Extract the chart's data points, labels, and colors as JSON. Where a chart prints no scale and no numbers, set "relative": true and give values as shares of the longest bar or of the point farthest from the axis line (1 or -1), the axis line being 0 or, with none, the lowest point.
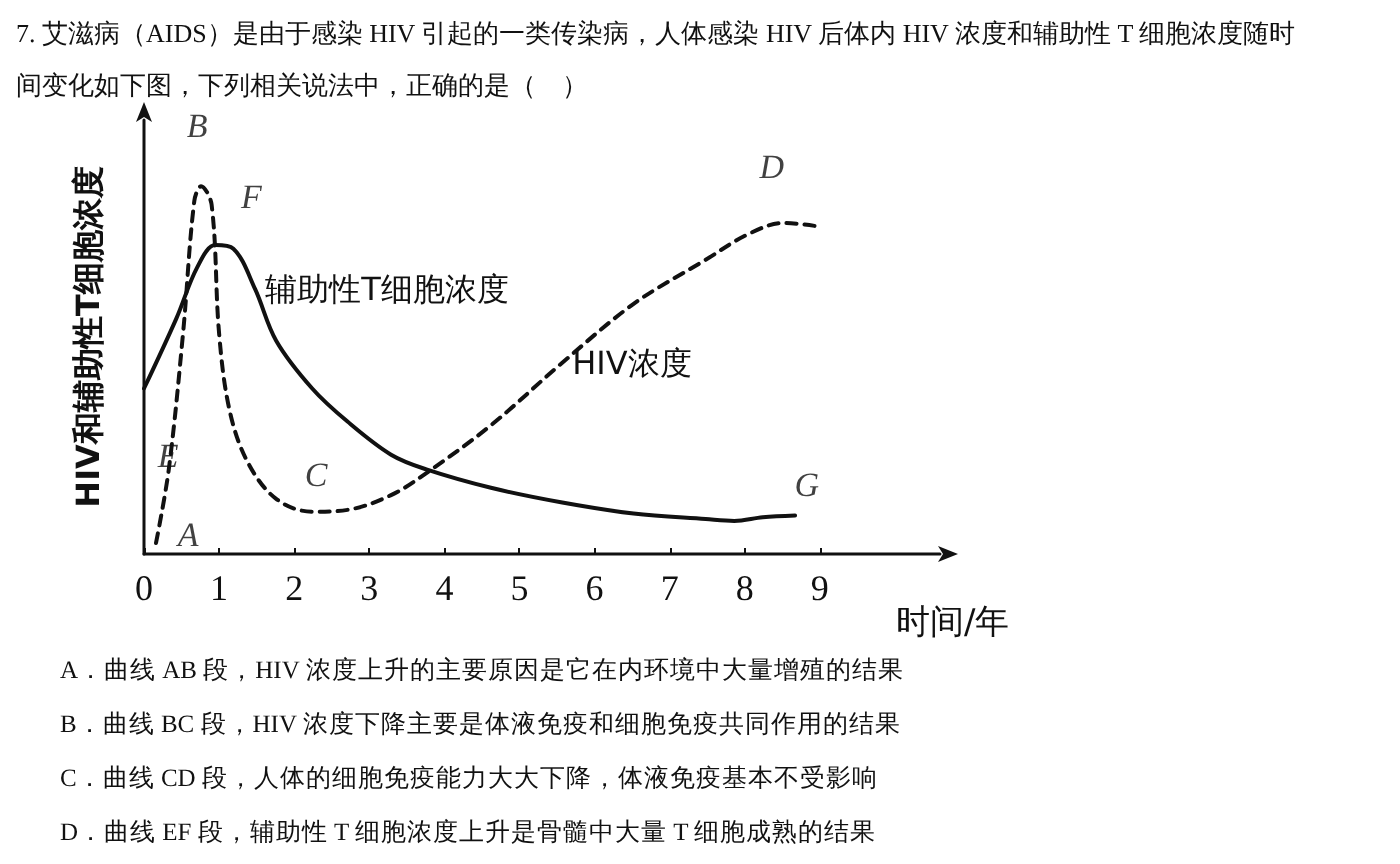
{
  "chart_data": {
    "type": "line",
    "relative": true,
    "title": "7. 艾滋病（AIDS）是由于感染 HIV 引起的一类传染病，人体感染 HIV 后体内 HIV 浓度和辅助性 T 细胞浓度随时间变化如下图，下列相关说法中，正确的是（　）",
    "xlabel": "时间/年",
    "ylabel": "HIV和辅助性T细胞浓度",
    "xlim": [
      0,
      10.6
    ],
    "xticks": [
      0,
      1,
      2,
      3,
      4,
      5,
      6,
      7,
      8,
      9
    ],
    "marker": "none",
    "series": [
      {
        "name": "辅助性T细胞浓度",
        "color": "#111111",
        "line_style": "solid",
        "x": [
          0,
          0.43,
          0.71,
          0.95,
          1.19,
          1.48,
          1.76,
          2.24,
          2.71,
          3.29,
          3.76,
          4.62,
          5.57,
          6.52,
          7.48,
          7.86,
          8.24,
          8.67
        ],
        "values": [
          0.45,
          0.64,
          0.78,
          0.84,
          0.83,
          0.72,
          0.58,
          0.45,
          0.36,
          0.27,
          0.23,
          0.18,
          0.14,
          0.11,
          0.095,
          0.09,
          0.1,
          0.105
        ]
      },
      {
        "name": "HIV浓度",
        "color": "#111111",
        "line_style": "dashed",
        "x": [
          0.16,
          0.33,
          0.52,
          0.67,
          0.76,
          0.9,
          1.0,
          1.14,
          1.38,
          1.76,
          2.24,
          2.71,
          3.29,
          3.76,
          4.62,
          5.57,
          6.52,
          7.48,
          8.05,
          8.52,
          9.0
        ],
        "values": [
          0.03,
          0.23,
          0.6,
          0.96,
          1.0,
          0.95,
          0.6,
          0.39,
          0.25,
          0.15,
          0.115,
          0.12,
          0.16,
          0.22,
          0.35,
          0.52,
          0.68,
          0.8,
          0.87,
          0.9,
          0.89
        ]
      }
    ],
    "annotations": [
      {
        "text": "A",
        "x": 0.16,
        "y": 0.03
      },
      {
        "text": "B",
        "x": 0.76,
        "y": 1.0
      },
      {
        "text": "C",
        "x": 1.76,
        "y": 0.15
      },
      {
        "text": "D",
        "x": 8.52,
        "y": 0.9
      },
      {
        "text": "E",
        "x": 0,
        "y": 0.45
      },
      {
        "text": "F",
        "x": 0.95,
        "y": 0.84
      },
      {
        "text": "G",
        "x": 8.24,
        "y": 0.1
      },
      "A．曲线 AB 段，HIV 浓度上升的主要原因是它在内环境中大量增殖的结果",
      "B．曲线 BC 段，HIV 浓度下降主要是体液免疫和细胞免疫共同作用的结果",
      "C．曲线 CD 段，人体的细胞免疫能力大大下降，体液免疫基本不受影响",
      "D．曲线 EF 段，辅助性 T 细胞浓度上升是骨髓中大量 T 细胞成熟的结果"
    ]
  }
}
